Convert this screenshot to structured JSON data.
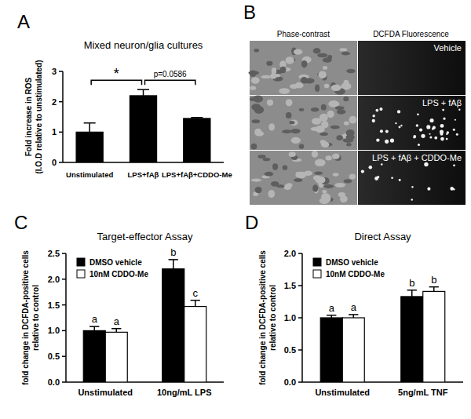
{
  "chart_data": [
    {
      "type": "bar",
      "panel_label": "A",
      "title": "Mixed neuron/glia cultures",
      "ylabel": "Fold increase in ROS\n(I.O.D relative to unstimulated)",
      "categories": [
        "Unstimulated",
        "LPS+fAβ",
        "LPS+fAβ+CDDO-Me"
      ],
      "values": [
        1.0,
        2.2,
        1.45
      ],
      "errors": [
        0.3,
        0.2,
        0.03
      ],
      "color": "#000000",
      "ylim": [
        0,
        3
      ],
      "yticks": [
        0,
        1,
        2,
        3
      ],
      "comparisons": [
        {
          "label": "*",
          "groups": [
            "Unstimulated",
            "LPS+fAβ"
          ]
        },
        {
          "label": "p=0.0586",
          "groups": [
            "LPS+fAβ",
            "LPS+fAβ+CDDO-Me"
          ]
        }
      ]
    },
    {
      "type": "bar",
      "panel_label": "C",
      "title": "Target-effector Assay",
      "ylabel": "fold change in DCFDA-positive cells\nrelative to control",
      "categories": [
        "Unstimulated",
        "10ng/mL LPS"
      ],
      "series": [
        {
          "name": "DMSO vehicle",
          "color": "#000000",
          "values": [
            1.0,
            2.2
          ],
          "errors": [
            0.08,
            0.18
          ],
          "letters": [
            "a",
            "b"
          ]
        },
        {
          "name": "10nM CDDO-Me",
          "color": "#ffffff",
          "values": [
            0.97,
            1.47
          ],
          "errors": [
            0.07,
            0.12
          ],
          "letters": [
            "a",
            "c"
          ]
        }
      ],
      "ylim": [
        0,
        2.5
      ],
      "yticks": [
        {
          "value": 0,
          "label": "0.0"
        },
        0.5,
        {
          "value": 1,
          "label": "1.0"
        },
        1.5,
        {
          "value": 2,
          "label": "2.0"
        },
        2.5
      ],
      "legend": "upper left"
    },
    {
      "type": "bar",
      "panel_label": "D",
      "title": "Direct Assay",
      "ylabel": "fold change in DCFDA-positive cells\nrelative to control",
      "categories": [
        "Unstimulated",
        "5ng/mL TNF"
      ],
      "series": [
        {
          "name": "DMSO vehicle",
          "color": "#000000",
          "values": [
            1.0,
            1.33
          ],
          "errors": [
            0.04,
            0.1
          ],
          "letters": [
            "a",
            "b"
          ]
        },
        {
          "name": "10nM CDDO-Me",
          "color": "#ffffff",
          "values": [
            1.0,
            1.41
          ],
          "errors": [
            0.05,
            0.07
          ],
          "letters": [
            "a",
            "b"
          ]
        }
      ],
      "ylim": [
        0,
        2
      ],
      "yticks": [
        {
          "value": 0,
          "label": "0.0"
        },
        0.5,
        {
          "value": 1,
          "label": "1.0"
        },
        1.5,
        {
          "value": 2,
          "label": "2.0"
        }
      ],
      "legend": "upper left"
    }
  ],
  "image_panel": {
    "panel_label": "B",
    "columns": [
      "Phase-contrast",
      "DCFDA Fluorescence"
    ],
    "rows": [
      "Vehicle",
      "LPS + fAβ",
      "LPS + fAβ + CDDO-Me"
    ]
  }
}
